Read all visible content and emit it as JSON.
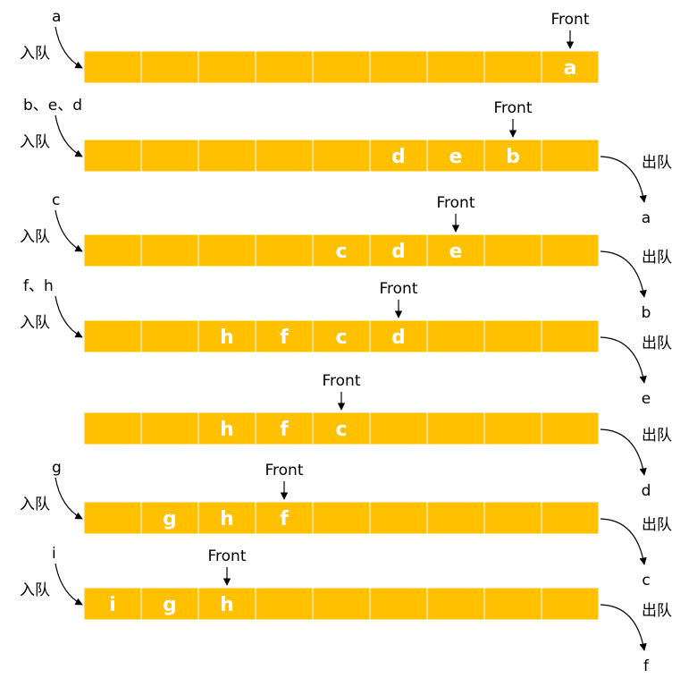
{
  "colors": {
    "cell": "#FFC000",
    "cell_border": "#FFFFFF",
    "cell_text": "#FFFFFF",
    "line": "#000000"
  },
  "labels": {
    "front": "Front",
    "enqueue": "入队",
    "dequeue": "出队"
  },
  "rows": [
    {
      "cells": [
        "",
        "",
        "",
        "",
        "",
        "",
        "",
        "",
        "a"
      ],
      "front_index": 8,
      "enqueue_items": "a",
      "dequeue_item": ""
    },
    {
      "cells": [
        "",
        "",
        "",
        "",
        "",
        "d",
        "e",
        "b",
        ""
      ],
      "front_index": 7,
      "enqueue_items": "b、e、d",
      "dequeue_item": "a"
    },
    {
      "cells": [
        "",
        "",
        "",
        "",
        "c",
        "d",
        "e",
        "",
        ""
      ],
      "front_index": 6,
      "enqueue_items": "c",
      "dequeue_item": "b"
    },
    {
      "cells": [
        "",
        "",
        "h",
        "f",
        "c",
        "d",
        "",
        "",
        ""
      ],
      "front_index": 5,
      "enqueue_items": "f、h",
      "dequeue_item": "e"
    },
    {
      "cells": [
        "",
        "",
        "h",
        "f",
        "c",
        "",
        "",
        "",
        ""
      ],
      "front_index": 4,
      "enqueue_items": "",
      "dequeue_item": "d"
    },
    {
      "cells": [
        "",
        "g",
        "h",
        "f",
        "",
        "",
        "",
        "",
        ""
      ],
      "front_index": 3,
      "enqueue_items": "g",
      "dequeue_item": "c"
    },
    {
      "cells": [
        "i",
        "g",
        "h",
        "",
        "",
        "",
        "",
        "",
        ""
      ],
      "front_index": 2,
      "enqueue_items": "i",
      "dequeue_item": "f"
    }
  ]
}
